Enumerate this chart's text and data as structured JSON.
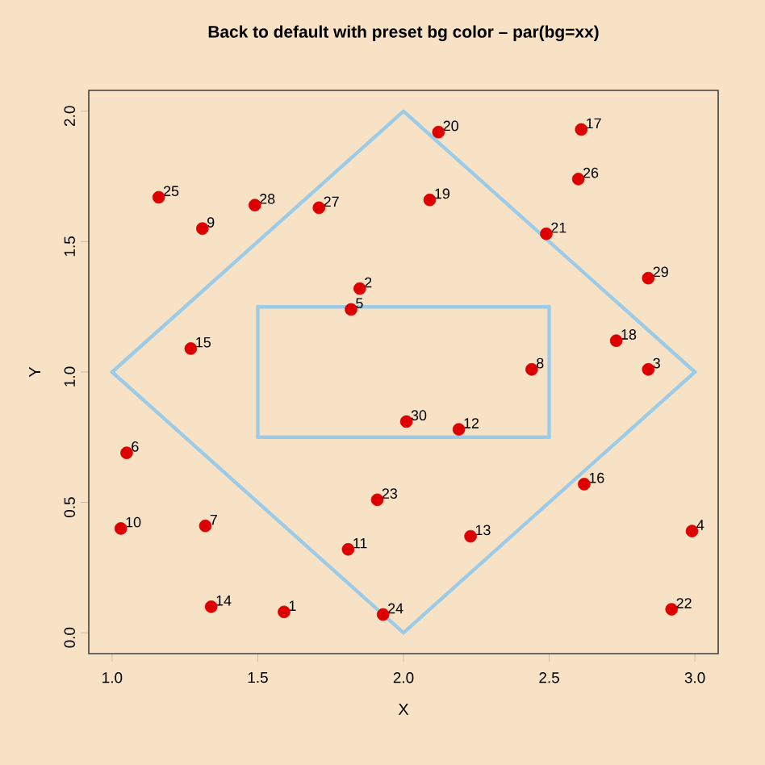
{
  "chart_data": {
    "type": "scatter",
    "title": "Back to default with preset bg color – par(bg=xx)",
    "xlabel": "X",
    "ylabel": "Y",
    "xlim": [
      0.92,
      3.08
    ],
    "ylim": [
      -0.08,
      2.08
    ],
    "xticks": [
      {
        "value": 1,
        "label": "1.0"
      },
      1.5,
      {
        "value": 2,
        "label": "2.0"
      },
      2.5,
      {
        "value": 3,
        "label": "3.0"
      }
    ],
    "yticks": [
      {
        "value": 0,
        "label": "0.0"
      },
      0.5,
      {
        "value": 1,
        "label": "1.0"
      },
      1.5,
      {
        "value": 2,
        "label": "2.0"
      }
    ],
    "series": [
      {
        "type": "line",
        "marker": "none",
        "color": "#9ccbe8",
        "x": [
          1,
          2,
          3
        ],
        "values": [
          1,
          2,
          1
        ]
      },
      {
        "type": "line",
        "marker": "none",
        "color": "#9ccbe8",
        "x": [
          1,
          2,
          3
        ],
        "values": [
          1,
          0,
          1
        ]
      },
      {
        "type": "line",
        "marker": "none",
        "color": "#9ccbe8",
        "x": [
          1.5,
          1.5,
          2.5,
          2.5
        ],
        "values": [
          0.75,
          1.25,
          1.25,
          0.75
        ]
      },
      {
        "type": "line",
        "marker": "none",
        "color": "#9ccbe8",
        "x": [
          1.5,
          2.5
        ],
        "values": [
          0.75,
          0.75
        ]
      },
      {
        "marker": "circle",
        "color": "#dd0000",
        "x": [
          1.59,
          1.85,
          2.84,
          2.99,
          1.82,
          1.05,
          1.32,
          2.44,
          1.31,
          1.03,
          1.81,
          2.19,
          2.23,
          1.34,
          1.27,
          2.62,
          2.61,
          2.73,
          2.09,
          2.12,
          2.49,
          2.92,
          1.91,
          1.93,
          1.16,
          2.6,
          1.71,
          1.49,
          2.84,
          2.01
        ],
        "values": [
          0.08,
          1.32,
          1.01,
          0.39,
          1.24,
          0.69,
          0.41,
          1.01,
          1.55,
          0.4,
          0.32,
          0.78,
          0.37,
          0.1,
          1.09,
          0.57,
          1.93,
          1.12,
          1.66,
          1.92,
          1.53,
          0.09,
          0.51,
          0.07,
          1.67,
          1.74,
          1.63,
          1.64,
          1.36,
          0.81
        ]
      }
    ],
    "annotations": [
      {
        "text": "1",
        "x": 1.59,
        "y": 0.08
      },
      {
        "text": "2",
        "x": 1.85,
        "y": 1.32
      },
      {
        "text": "3",
        "x": 2.84,
        "y": 1.01
      },
      {
        "text": "4",
        "x": 2.99,
        "y": 0.39
      },
      {
        "text": "5",
        "x": 1.82,
        "y": 1.24
      },
      {
        "text": "6",
        "x": 1.05,
        "y": 0.69
      },
      {
        "text": "7",
        "x": 1.32,
        "y": 0.41
      },
      {
        "text": "8",
        "x": 2.44,
        "y": 1.01
      },
      {
        "text": "9",
        "x": 1.31,
        "y": 1.55
      },
      {
        "text": "10",
        "x": 1.03,
        "y": 0.4
      },
      {
        "text": "11",
        "x": 1.81,
        "y": 0.32
      },
      {
        "text": "12",
        "x": 2.19,
        "y": 0.78
      },
      {
        "text": "13",
        "x": 2.23,
        "y": 0.37
      },
      {
        "text": "14",
        "x": 1.34,
        "y": 0.1
      },
      {
        "text": "15",
        "x": 1.27,
        "y": 1.09
      },
      {
        "text": "16",
        "x": 2.62,
        "y": 0.57
      },
      {
        "text": "17",
        "x": 2.61,
        "y": 1.93
      },
      {
        "text": "18",
        "x": 2.73,
        "y": 1.12
      },
      {
        "text": "19",
        "x": 2.09,
        "y": 1.66
      },
      {
        "text": "20",
        "x": 2.12,
        "y": 1.92
      },
      {
        "text": "21",
        "x": 2.49,
        "y": 1.53
      },
      {
        "text": "22",
        "x": 2.92,
        "y": 0.09
      },
      {
        "text": "23",
        "x": 1.91,
        "y": 0.51
      },
      {
        "text": "24",
        "x": 1.93,
        "y": 0.07
      },
      {
        "text": "25",
        "x": 1.16,
        "y": 1.67
      },
      {
        "text": "26",
        "x": 2.6,
        "y": 1.74
      },
      {
        "text": "27",
        "x": 1.71,
        "y": 1.63
      },
      {
        "text": "28",
        "x": 1.49,
        "y": 1.64
      },
      {
        "text": "29",
        "x": 2.84,
        "y": 1.36
      },
      {
        "text": "30",
        "x": 2.01,
        "y": 0.81
      }
    ]
  }
}
